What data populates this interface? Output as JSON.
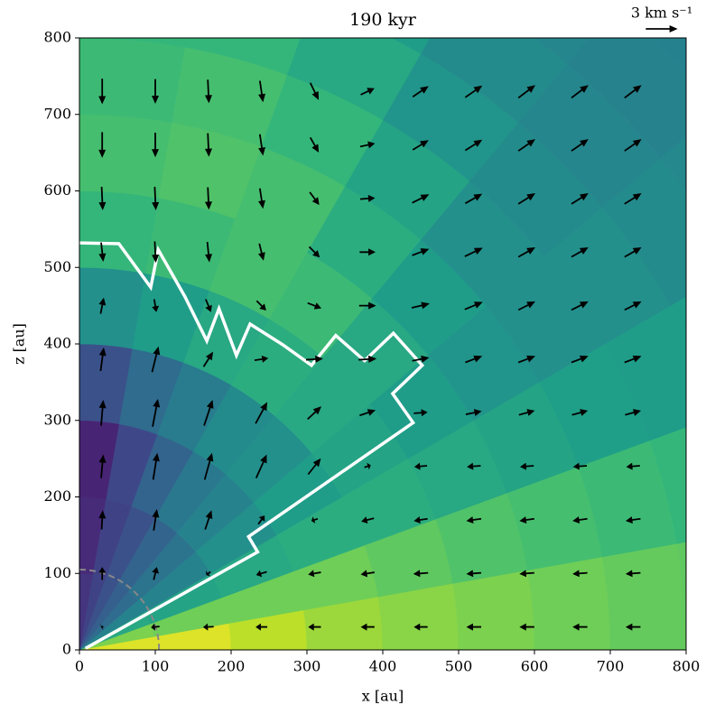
{
  "chart_data": {
    "type": "quiver",
    "title": "190 kyr",
    "xlabel": "x [au]",
    "ylabel": "z [au]",
    "xlim": [
      0,
      800
    ],
    "ylim": [
      0,
      800
    ],
    "xticks": [
      0,
      100,
      200,
      300,
      400,
      500,
      600,
      700,
      800
    ],
    "yticks": [
      0,
      100,
      200,
      300,
      400,
      500,
      600,
      700,
      800
    ],
    "colormap": [
      "#440154",
      "#482878",
      "#3e4989",
      "#31688e",
      "#26828e",
      "#1f9e89",
      "#35b779",
      "#6ece58",
      "#b5de2b",
      "#fde725"
    ],
    "field": {
      "r_edges": [
        0,
        100,
        200,
        300,
        400,
        500,
        600,
        700,
        800,
        900,
        1000,
        1100,
        1200
      ],
      "theta_edges": [
        0,
        10,
        20,
        30,
        40,
        50,
        60,
        70,
        80,
        90
      ],
      "values": [
        [
          0.95,
          0.8,
          0.6,
          0.45,
          0.35,
          0.3,
          0.25,
          0.2,
          0.15
        ],
        [
          0.95,
          0.78,
          0.58,
          0.45,
          0.38,
          0.32,
          0.25,
          0.2,
          0.12
        ],
        [
          0.9,
          0.78,
          0.6,
          0.5,
          0.45,
          0.4,
          0.32,
          0.22,
          0.1
        ],
        [
          0.85,
          0.78,
          0.62,
          0.55,
          0.5,
          0.48,
          0.42,
          0.35,
          0.25
        ],
        [
          0.82,
          0.75,
          0.62,
          0.58,
          0.6,
          0.62,
          0.6,
          0.55,
          0.5
        ],
        [
          0.8,
          0.72,
          0.6,
          0.55,
          0.6,
          0.68,
          0.7,
          0.68,
          0.66
        ],
        [
          0.78,
          0.7,
          0.58,
          0.52,
          0.55,
          0.62,
          0.7,
          0.72,
          0.7
        ],
        [
          0.76,
          0.68,
          0.56,
          0.5,
          0.5,
          0.58,
          0.66,
          0.7,
          0.68
        ],
        [
          0.75,
          0.66,
          0.55,
          0.5,
          0.48,
          0.52,
          0.6,
          0.66,
          0.66
        ],
        [
          0.74,
          0.65,
          0.55,
          0.48,
          0.46,
          0.48,
          0.55,
          0.6,
          0.62
        ],
        [
          0.74,
          0.64,
          0.54,
          0.47,
          0.45,
          0.46,
          0.5,
          0.55,
          0.6
        ],
        [
          0.73,
          0.63,
          0.53,
          0.46,
          0.44,
          0.45,
          0.48,
          0.52,
          0.58
        ]
      ]
    },
    "quiver": {
      "x": [
        30,
        100,
        170,
        240,
        310,
        380,
        450,
        520,
        590,
        660,
        730
      ],
      "y": [
        30,
        100,
        170,
        240,
        310,
        380,
        450,
        520,
        590,
        660,
        730
      ],
      "u": [
        [
          -0.2,
          -0.8,
          -1,
          -1.1,
          -1.2,
          -1.3,
          -1.3,
          -1.4,
          -1.4,
          -1.4,
          -1.4
        ],
        [
          0,
          0.3,
          -0.4,
          -1,
          -1.2,
          -1.3,
          -1.4,
          -1.4,
          -1.4,
          -1.4,
          -1.4
        ],
        [
          0.1,
          0.3,
          0.6,
          0.6,
          -0.6,
          -1.2,
          -1.3,
          -1.4,
          -1.4,
          -1.4,
          -1.4
        ],
        [
          0.2,
          0.4,
          0.7,
          1,
          1.2,
          0.6,
          -1.2,
          -1.3,
          -1.3,
          -1.3,
          -1.3
        ],
        [
          0.2,
          0.5,
          0.8,
          1.1,
          1.3,
          1.5,
          1.3,
          1.5,
          1.5,
          1.5,
          1.5
        ],
        [
          0.3,
          0.6,
          0.9,
          1.3,
          1.6,
          1.7,
          1.6,
          1.6,
          1.6,
          1.6,
          1.6
        ],
        [
          0.3,
          0.2,
          0.5,
          0.9,
          1.3,
          1.6,
          1.7,
          1.7,
          1.6,
          1.6,
          1.6
        ],
        [
          0.2,
          0.1,
          0.2,
          0.4,
          1,
          1.5,
          1.6,
          1.7,
          1.6,
          1.6,
          1.6
        ],
        [
          0.1,
          0.1,
          0.1,
          0.3,
          0.9,
          1.4,
          1.6,
          1.6,
          1.6,
          1.6,
          1.6
        ],
        [
          0,
          0,
          0.1,
          0.3,
          0.8,
          1.4,
          1.5,
          1.6,
          1.6,
          1.6,
          1.6
        ],
        [
          0,
          0,
          0.1,
          0.3,
          0.8,
          1.3,
          1.5,
          1.6,
          1.6,
          1.6,
          1.6
        ]
      ],
      "v": [
        [
          -0.1,
          -0.1,
          -0.05,
          0,
          0,
          0,
          0,
          0,
          0,
          0,
          0
        ],
        [
          1.2,
          1.2,
          -0.3,
          -0.3,
          -0.2,
          -0.2,
          -0.1,
          -0.1,
          -0.1,
          -0.1,
          -0.1
        ],
        [
          1.8,
          2,
          1.8,
          0.8,
          -0.2,
          -0.3,
          -0.2,
          -0.2,
          -0.2,
          -0.2,
          -0.2
        ],
        [
          2.2,
          2.5,
          2.5,
          2.2,
          1.5,
          0.2,
          -0.1,
          -0.1,
          -0.1,
          -0.1,
          -0.1
        ],
        [
          2.4,
          2.6,
          2.4,
          2,
          1.2,
          0.5,
          0.1,
          0.3,
          0.4,
          0.4,
          0.4
        ],
        [
          2.2,
          2.4,
          1.4,
          0.2,
          0.1,
          0.1,
          0.3,
          0.6,
          0.6,
          0.6,
          0.6
        ],
        [
          1.5,
          -1.2,
          -1.2,
          -0.9,
          -0.5,
          0,
          0.4,
          0.7,
          0.8,
          0.8,
          0.8
        ],
        [
          -1.8,
          -2,
          -1.9,
          -1.6,
          -1,
          0,
          0.6,
          0.8,
          0.9,
          0.9,
          0.9
        ],
        [
          -2.2,
          -2.2,
          -2.1,
          -1.9,
          -1.2,
          0.1,
          0.8,
          0.9,
          1,
          1,
          1
        ],
        [
          -2.4,
          -2.3,
          -2.2,
          -2,
          -1.4,
          0.3,
          0.9,
          1,
          1.1,
          1.1,
          1.1
        ],
        [
          -2.4,
          -2.3,
          -2.2,
          -2,
          -1.6,
          0.6,
          1,
          1.1,
          1.2,
          1.2,
          1.2
        ]
      ],
      "scale": 14,
      "color": "#000000",
      "key_value": 3,
      "key_label": "3 km s⁻¹"
    },
    "contour": {
      "color": "#ffffff",
      "x": [
        8,
        235,
        223,
        440,
        413,
        452,
        414,
        376,
        338,
        306,
        268,
        225,
        207,
        184,
        168,
        139,
        104,
        94,
        52,
        0
      ],
      "y": [
        2,
        128,
        148,
        297,
        335,
        372,
        414,
        378,
        411,
        372,
        399,
        426,
        385,
        446,
        404,
        462,
        523,
        474,
        531,
        532
      ]
    },
    "circle": {
      "radius": 105,
      "color": "#888888"
    }
  }
}
